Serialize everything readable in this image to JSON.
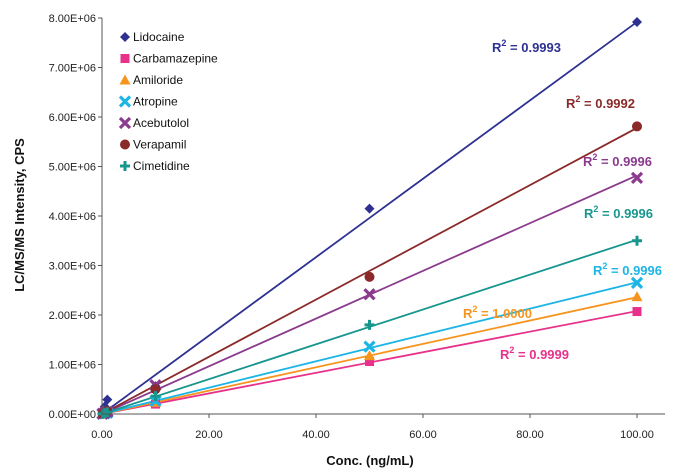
{
  "chart_data": {
    "type": "scatter",
    "xlabel": "Conc. (ng/mL)",
    "ylabel": "LC/MS/MS Intensity, CPS",
    "xlim": [
      0,
      110
    ],
    "ylim": [
      0,
      8000000
    ],
    "x_ticks": [
      0,
      20,
      40,
      60,
      80,
      100
    ],
    "x_tick_labels": [
      "0.00",
      "20.00",
      "40.00",
      "60.00",
      "80.00",
      "100.00"
    ],
    "y_ticks": [
      0,
      1000000,
      2000000,
      3000000,
      4000000,
      5000000,
      6000000,
      7000000,
      8000000
    ],
    "y_tick_labels": [
      "0.00E+00",
      "1.00E+06",
      "2.00E+06",
      "3.00E+06",
      "4.00E+06",
      "5.00E+06",
      "6.00E+06",
      "7.00E+06",
      "8.00E+06"
    ],
    "grid": false,
    "legend_position": "top-left",
    "trendlines": "linear",
    "series": [
      {
        "name": "Lidocaine",
        "color": "#2E3192",
        "marker": "diamond",
        "x": [
          0.1,
          0.5,
          1,
          10,
          50,
          100
        ],
        "y": [
          8000,
          150000,
          290000,
          560000,
          4150000,
          7920000
        ],
        "fit": [
          0,
          79200
        ],
        "r2_label": "R2 = 0.9993"
      },
      {
        "name": "Carbamazepine",
        "color": "#E8318A",
        "marker": "square",
        "x": [
          0.1,
          0.5,
          1,
          10,
          50,
          100
        ],
        "y": [
          2000,
          10000,
          21000,
          200000,
          1060000,
          2070000
        ],
        "fit": [
          0,
          20800
        ],
        "r2_label": "R2 = 0.9999"
      },
      {
        "name": "Amiloride",
        "color": "#F7941D",
        "marker": "triangle",
        "x": [
          0.1,
          0.5,
          1,
          10,
          50,
          100
        ],
        "y": [
          2400,
          12000,
          24000,
          235000,
          1180000,
          2370000
        ],
        "fit": [
          0,
          23600
        ],
        "r2_label": "R2 = 1.0000"
      },
      {
        "name": "Atropine",
        "color": "#1CB5E6",
        "marker": "x",
        "x": [
          0.1,
          0.5,
          1,
          10,
          50,
          100
        ],
        "y": [
          2600,
          13000,
          26000,
          265000,
          1360000,
          2650000
        ],
        "fit": [
          0,
          26600
        ],
        "r2_label": "R2 = 0.9996"
      },
      {
        "name": "Acebutolol",
        "color": "#8B3A8E",
        "marker": "x",
        "x": [
          0.1,
          0.5,
          1,
          10,
          50,
          100
        ],
        "y": [
          5000,
          24000,
          48000,
          580000,
          2420000,
          4770000
        ],
        "fit": [
          0,
          48200
        ],
        "r2_label": "R2 = 0.9996"
      },
      {
        "name": "Verapamil",
        "color": "#8B2A2A",
        "marker": "circle",
        "x": [
          0.1,
          0.5,
          1,
          10,
          50,
          100
        ],
        "y": [
          6000,
          28000,
          58000,
          500000,
          2770000,
          5810000
        ],
        "fit": [
          0,
          57800
        ],
        "r2_label": "R2 = 0.9992"
      },
      {
        "name": "Cimetidine",
        "color": "#17968E",
        "marker": "plus",
        "x": [
          0.1,
          0.5,
          1,
          10,
          50,
          100
        ],
        "y": [
          3500,
          17000,
          35000,
          360000,
          1800000,
          3500000
        ],
        "fit": [
          0,
          35200
        ],
        "r2_label": "R2 = 0.9996"
      }
    ]
  }
}
